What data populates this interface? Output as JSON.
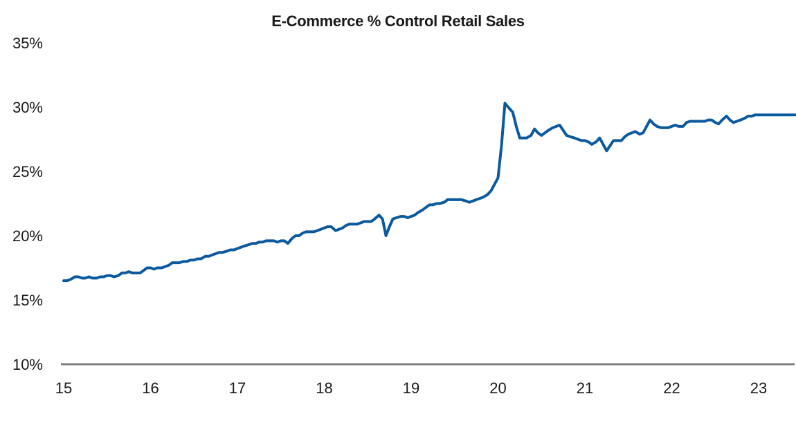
{
  "chart_data": {
    "type": "line",
    "title": "E-Commerce % Control Retail Sales",
    "xlabel": "",
    "ylabel": "",
    "x_tick_labels": [
      "15",
      "16",
      "17",
      "18",
      "19",
      "20",
      "21",
      "22",
      "23"
    ],
    "y_tick_labels": [
      "10%",
      "15%",
      "20%",
      "25%",
      "30%",
      "35%"
    ],
    "y_ticks": [
      10,
      15,
      20,
      25,
      30,
      35
    ],
    "ylim": [
      10,
      35
    ],
    "xlim": [
      2015.0,
      2023.42
    ],
    "grid": false,
    "legend": "none",
    "line_color": "#0b5aa0",
    "axis_color": "#7f7f7f",
    "series": [
      {
        "x": [
          2015.0,
          2015.04,
          2015.08,
          2015.13,
          2015.17,
          2015.21,
          2015.25,
          2015.29,
          2015.33,
          2015.38,
          2015.42,
          2015.46,
          2015.5,
          2015.54,
          2015.58,
          2015.63,
          2015.67,
          2015.71,
          2015.75,
          2015.79,
          2015.83,
          2015.88,
          2015.92,
          2015.96,
          2016.0,
          2016.04,
          2016.08,
          2016.13,
          2016.17,
          2016.21,
          2016.25,
          2016.29,
          2016.33,
          2016.38,
          2016.42,
          2016.46,
          2016.5,
          2016.54,
          2016.58,
          2016.63,
          2016.67,
          2016.71,
          2016.75,
          2016.79,
          2016.83,
          2016.88,
          2016.92,
          2016.96,
          2017.0,
          2017.04,
          2017.08,
          2017.13,
          2017.17,
          2017.21,
          2017.25,
          2017.29,
          2017.33,
          2017.38,
          2017.42,
          2017.46,
          2017.5,
          2017.54,
          2017.58,
          2017.63,
          2017.67,
          2017.71,
          2017.75,
          2017.79,
          2017.83,
          2017.88,
          2017.92,
          2017.96,
          2018.0,
          2018.04,
          2018.08,
          2018.13,
          2018.17,
          2018.21,
          2018.25,
          2018.29,
          2018.33,
          2018.38,
          2018.42,
          2018.46,
          2018.5,
          2018.54,
          2018.58,
          2018.63,
          2018.67,
          2018.71,
          2018.75,
          2018.79,
          2018.83,
          2018.88,
          2018.92,
          2018.96,
          2019.0,
          2019.04,
          2019.08,
          2019.13,
          2019.17,
          2019.21,
          2019.25,
          2019.29,
          2019.33,
          2019.38,
          2019.42,
          2019.46,
          2019.5,
          2019.54,
          2019.58,
          2019.63,
          2019.67,
          2019.71,
          2019.75,
          2019.79,
          2019.83,
          2019.88,
          2019.92,
          2019.96,
          2020.0,
          2020.04,
          2020.08,
          2020.13,
          2020.17,
          2020.21,
          2020.25,
          2020.29,
          2020.33,
          2020.38,
          2020.42,
          2020.46,
          2020.5,
          2020.54,
          2020.58,
          2020.63,
          2020.67,
          2020.71,
          2020.75,
          2020.79,
          2020.83,
          2020.88,
          2020.92,
          2020.96,
          2021.0,
          2021.04,
          2021.08,
          2021.13,
          2021.17,
          2021.21,
          2021.25,
          2021.29,
          2021.33,
          2021.38,
          2021.42,
          2021.46,
          2021.5,
          2021.54,
          2021.58,
          2021.63,
          2021.67,
          2021.71,
          2021.75,
          2021.79,
          2021.83,
          2021.88,
          2021.92,
          2021.96,
          2022.0,
          2022.04,
          2022.08,
          2022.13,
          2022.17,
          2022.21,
          2022.25,
          2022.29,
          2022.33,
          2022.38,
          2022.42,
          2022.46,
          2022.5,
          2022.54,
          2022.58,
          2022.63,
          2022.67,
          2022.71,
          2022.75,
          2022.79,
          2022.83,
          2022.88,
          2022.92,
          2022.96,
          2023.0,
          2023.04,
          2023.08,
          2023.13,
          2023.17,
          2023.21,
          2023.25,
          2023.29,
          2023.33,
          2023.38,
          2023.42
        ],
        "values": [
          16.5,
          16.5,
          16.6,
          16.8,
          16.8,
          16.7,
          16.7,
          16.8,
          16.7,
          16.7,
          16.8,
          16.8,
          16.9,
          16.9,
          16.8,
          16.9,
          17.1,
          17.1,
          17.2,
          17.1,
          17.1,
          17.1,
          17.3,
          17.5,
          17.5,
          17.4,
          17.5,
          17.5,
          17.6,
          17.7,
          17.9,
          17.9,
          17.9,
          18.0,
          18.0,
          18.1,
          18.1,
          18.2,
          18.2,
          18.4,
          18.4,
          18.5,
          18.6,
          18.7,
          18.7,
          18.8,
          18.9,
          18.9,
          19.0,
          19.1,
          19.2,
          19.3,
          19.4,
          19.4,
          19.5,
          19.5,
          19.6,
          19.6,
          19.6,
          19.5,
          19.6,
          19.6,
          19.4,
          19.8,
          20.0,
          20.0,
          20.2,
          20.3,
          20.3,
          20.3,
          20.4,
          20.5,
          20.6,
          20.7,
          20.7,
          20.4,
          20.5,
          20.6,
          20.8,
          20.9,
          20.9,
          20.9,
          21.0,
          21.1,
          21.1,
          21.1,
          21.3,
          21.6,
          21.3,
          20.0,
          20.7,
          21.3,
          21.4,
          21.5,
          21.5,
          21.4,
          21.5,
          21.6,
          21.8,
          22.0,
          22.2,
          22.4,
          22.4,
          22.5,
          22.5,
          22.6,
          22.8,
          22.8,
          22.8,
          22.8,
          22.8,
          22.7,
          22.6,
          22.7,
          22.8,
          22.9,
          23.0,
          23.2,
          23.5,
          24.0,
          24.5,
          27.0,
          30.3,
          29.9,
          29.6,
          28.5,
          27.6,
          27.6,
          27.6,
          27.8,
          28.3,
          28.0,
          27.8,
          28.0,
          28.2,
          28.4,
          28.5,
          28.6,
          28.2,
          27.8,
          27.7,
          27.6,
          27.5,
          27.4,
          27.4,
          27.3,
          27.1,
          27.3,
          27.6,
          27.1,
          26.6,
          27.0,
          27.4,
          27.4,
          27.4,
          27.7,
          27.9,
          28.0,
          28.1,
          27.9,
          28.0,
          28.5,
          29.0,
          28.7,
          28.5,
          28.4,
          28.4,
          28.4,
          28.5,
          28.6,
          28.5,
          28.5,
          28.8,
          28.9,
          28.9,
          28.9,
          28.9,
          28.9,
          29.0,
          29.0,
          28.8,
          28.7,
          29.0,
          29.3,
          29.0,
          28.8,
          28.9,
          29.0,
          29.1,
          29.3,
          29.3,
          29.4,
          29.4,
          29.4,
          29.4,
          29.4,
          29.4,
          29.4,
          29.4,
          29.4,
          29.4,
          29.4,
          29.4
        ]
      }
    ]
  }
}
